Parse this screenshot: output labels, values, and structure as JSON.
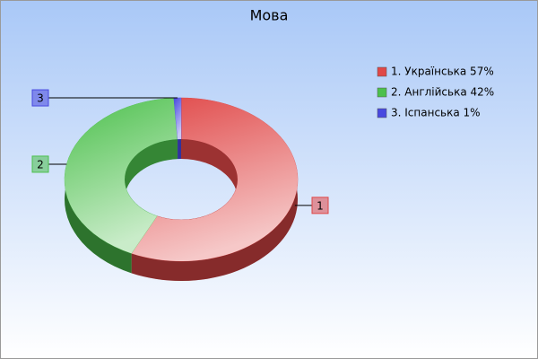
{
  "chart_data": {
    "type": "donut3d",
    "title": "Мова",
    "categories": [
      "1. Українська 57%",
      "2. Англійська 42%",
      "3. Іспанська 1%"
    ],
    "values": [
      57,
      42,
      1
    ],
    "point_labels": [
      "1",
      "2",
      "3"
    ],
    "colors": [
      "#e04848",
      "#4cc04c",
      "#4848e0"
    ]
  }
}
